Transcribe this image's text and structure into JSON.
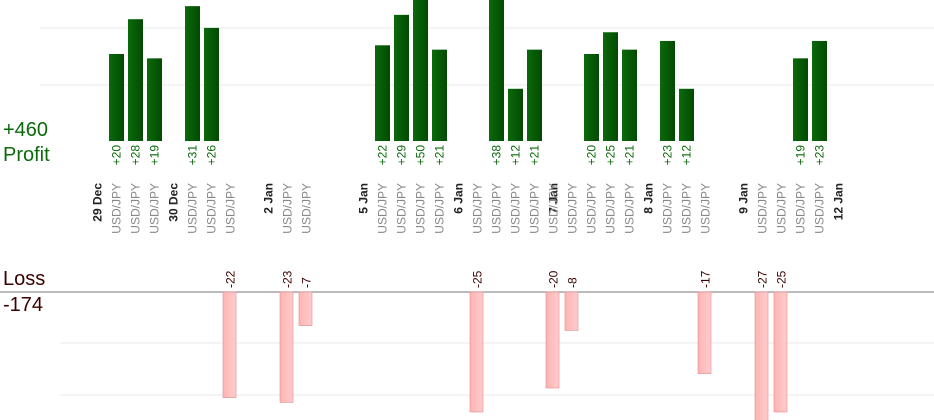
{
  "summary": {
    "profit_total": "+460",
    "profit_label": "Profit",
    "loss_label": "Loss",
    "loss_total": "-174"
  },
  "colors": {
    "profit_bar": "#0b6a0b",
    "profit_text": "#0b6a0b",
    "loss_bar": "#ffb3b3",
    "loss_bar_edge": "#e08a8a",
    "loss_text": "#3b0000",
    "category_text": "#888888",
    "date_text": "#222222",
    "grid": "#e8e8e8",
    "axis": "#777777"
  },
  "chart_data": {
    "type": "bar",
    "title": "",
    "xlabel": "",
    "ylabel": "",
    "ylim": [
      -30,
      30
    ],
    "grid": true,
    "legend": "none",
    "instrument": "USD/JPY",
    "dates": [
      {
        "label": "29 Dec",
        "slot": 0
      },
      {
        "label": "30 Dec",
        "slot": 4
      },
      {
        "label": "2 Jan",
        "slot": 9
      },
      {
        "label": "5 Jan",
        "slot": 14
      },
      {
        "label": "6 Jan",
        "slot": 19
      },
      {
        "label": "7 Jan",
        "slot": 24
      },
      {
        "label": "8 Jan",
        "slot": 29
      },
      {
        "label": "9 Jan",
        "slot": 34
      },
      {
        "label": "12 Jan",
        "slot": 39
      }
    ],
    "trades": [
      {
        "slot": 1,
        "label": "USD/JPY",
        "value": 20
      },
      {
        "slot": 2,
        "label": "USD/JPY",
        "value": 28
      },
      {
        "slot": 3,
        "label": "USD/JPY",
        "value": 19
      },
      {
        "slot": 5,
        "label": "USD/JPY",
        "value": 31
      },
      {
        "slot": 6,
        "label": "USD/JPY",
        "value": 26
      },
      {
        "slot": 7,
        "label": "USD/JPY",
        "value": -22
      },
      {
        "slot": 10,
        "label": "USD/JPY",
        "value": -23
      },
      {
        "slot": 11,
        "label": "USD/JPY",
        "value": -7
      },
      {
        "slot": 15,
        "label": "USD/JPY",
        "value": 22
      },
      {
        "slot": 16,
        "label": "USD/JPY",
        "value": 29
      },
      {
        "slot": 17,
        "label": "USD/JPY",
        "value": 50
      },
      {
        "slot": 18,
        "label": "USD/JPY",
        "value": 21
      },
      {
        "slot": 20,
        "label": "USD/JPY",
        "value": -25
      },
      {
        "slot": 21,
        "label": "USD/JPY",
        "value": 38
      },
      {
        "slot": 22,
        "label": "USD/JPY",
        "value": 12
      },
      {
        "slot": 23,
        "label": "USD/JPY",
        "value": 21
      },
      {
        "slot": 24,
        "label": "USD/JPY",
        "value": -20
      },
      {
        "slot": 25,
        "label": "USD/JPY",
        "value": -8
      },
      {
        "slot": 26,
        "label": "USD/JPY",
        "value": 20
      },
      {
        "slot": 27,
        "label": "USD/JPY",
        "value": 25
      },
      {
        "slot": 28,
        "label": "USD/JPY",
        "value": 21
      },
      {
        "slot": 30,
        "label": "USD/JPY",
        "value": 23
      },
      {
        "slot": 31,
        "label": "USD/JPY",
        "value": 12
      },
      {
        "slot": 32,
        "label": "USD/JPY",
        "value": -17
      },
      {
        "slot": 35,
        "label": "USD/JPY",
        "value": -27
      },
      {
        "slot": 36,
        "label": "USD/JPY",
        "value": -25
      },
      {
        "slot": 37,
        "label": "USD/JPY",
        "value": 19
      },
      {
        "slot": 38,
        "label": "USD/JPY",
        "value": 23
      }
    ]
  }
}
